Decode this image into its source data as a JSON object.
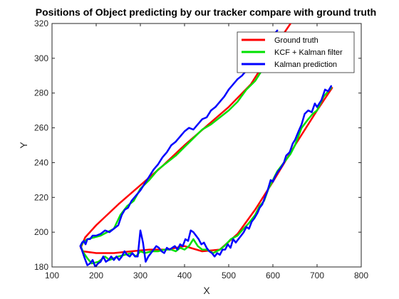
{
  "chart_data": {
    "type": "line",
    "title": "Positions of Object predicting by our tracker compare with ground truth",
    "xlabel": "X",
    "ylabel": "Y",
    "xlim": [
      100,
      800
    ],
    "ylim": [
      180,
      320
    ],
    "xticks": [
      100,
      200,
      300,
      400,
      500,
      600,
      700,
      800
    ],
    "yticks": [
      180,
      200,
      220,
      240,
      260,
      280,
      300,
      320
    ],
    "grid": false,
    "legend_position": "top-right",
    "series": [
      {
        "name": "Ground truth",
        "color": "#ff0000",
        "x": [
          734,
          700,
          650,
          600,
          560,
          520,
          480,
          440,
          400,
          360,
          320,
          280,
          240,
          200,
          170,
          165,
          175,
          200,
          250,
          300,
          350,
          400,
          450,
          500,
          550,
          600,
          640
        ],
        "y": [
          283,
          270,
          250,
          229,
          213,
          199,
          190,
          189,
          192,
          190,
          190,
          189,
          188,
          188,
          189,
          191,
          197,
          204,
          216,
          227,
          238,
          250,
          261,
          272,
          285,
          305,
          320
        ]
      },
      {
        "name": "KCF + Kalman filter",
        "color": "#00e000",
        "x": [
          732,
          715,
          700,
          690,
          680,
          665,
          650,
          640,
          625,
          610,
          600,
          590,
          580,
          570,
          560,
          545,
          530,
          520,
          505,
          490,
          480,
          465,
          450,
          440,
          430,
          420,
          410,
          400,
          390,
          380,
          370,
          355,
          340,
          325,
          310,
          300,
          290,
          280,
          265,
          250,
          240,
          230,
          220,
          205,
          190,
          180,
          172,
          168,
          165,
          170,
          180,
          195,
          210,
          225,
          240,
          255,
          270,
          285,
          300,
          320,
          340,
          360,
          380,
          400,
          420,
          440,
          460,
          480,
          500,
          520,
          540,
          560,
          580,
          600
        ],
        "y": [
          283,
          278,
          270,
          268,
          265,
          260,
          250,
          245,
          240,
          235,
          230,
          225,
          218,
          215,
          210,
          205,
          201,
          198,
          196,
          192,
          190,
          188,
          190,
          190,
          192,
          196,
          192,
          190,
          191,
          189,
          190,
          190,
          189,
          189,
          188,
          189,
          186,
          188,
          187,
          186,
          185,
          184,
          186,
          183,
          182,
          185,
          188,
          190,
          192,
          194,
          196,
          197,
          198,
          200,
          202,
          210,
          215,
          218,
          225,
          230,
          236,
          240,
          244,
          249,
          254,
          259,
          262,
          266,
          270,
          275,
          282,
          287,
          295,
          305
        ]
      },
      {
        "name": "Kalman prediction",
        "color": "#0000ff",
        "x": [
          732,
          725,
          718,
          710,
          700,
          695,
          688,
          680,
          672,
          665,
          658,
          650,
          645,
          638,
          630,
          625,
          618,
          612,
          605,
          600,
          595,
          588,
          582,
          576,
          570,
          565,
          558,
          552,
          546,
          540,
          534,
          528,
          522,
          516,
          510,
          504,
          498,
          492,
          486,
          480,
          474,
          468,
          462,
          456,
          450,
          444,
          438,
          432,
          426,
          420,
          414,
          408,
          402,
          396,
          390,
          384,
          378,
          372,
          366,
          360,
          354,
          348,
          342,
          336,
          330,
          324,
          318,
          312,
          306,
          300,
          294,
          288,
          282,
          276,
          270,
          264,
          258,
          252,
          246,
          240,
          234,
          228,
          222,
          216,
          210,
          204,
          198,
          192,
          186,
          180,
          174,
          170,
          166,
          164,
          168,
          172,
          176,
          180,
          186,
          192,
          200,
          210,
          220,
          230,
          240,
          250,
          258,
          265,
          272,
          280,
          290,
          300,
          310,
          320,
          330,
          340,
          350,
          360,
          370,
          380,
          390,
          400,
          410,
          420,
          430,
          440,
          450,
          460,
          470,
          480,
          490,
          500,
          510,
          520,
          530,
          540,
          550,
          560,
          570,
          580,
          590,
          600,
          610
        ],
        "y": [
          284,
          281,
          282,
          276,
          272,
          274,
          269,
          270,
          268,
          262,
          258,
          253,
          251,
          246,
          244,
          240,
          237,
          235,
          232,
          229,
          230,
          224,
          220,
          216,
          214,
          211,
          208,
          206,
          202,
          203,
          200,
          198,
          196,
          194,
          196,
          191,
          193,
          190,
          190,
          187,
          188,
          186,
          188,
          189,
          191,
          194,
          193,
          196,
          198,
          200,
          201,
          195,
          196,
          192,
          193,
          190,
          192,
          191,
          190,
          191,
          188,
          189,
          191,
          192,
          190,
          188,
          186,
          183,
          194,
          201,
          186,
          186,
          188,
          186,
          187,
          189,
          186,
          184,
          186,
          184,
          186,
          184,
          183,
          186,
          183,
          182,
          180,
          184,
          182,
          181,
          185,
          188,
          191,
          192,
          194,
          195,
          193,
          196,
          196,
          198,
          198,
          199,
          201,
          200,
          202,
          204,
          210,
          213,
          214,
          218,
          221,
          224,
          228,
          232,
          236,
          239,
          243,
          246,
          250,
          252,
          255,
          258,
          260,
          259,
          262,
          265,
          266,
          270,
          272,
          275,
          278,
          282,
          285,
          288,
          290,
          293,
          296,
          300,
          303,
          306,
          310,
          313,
          316
        ]
      }
    ]
  }
}
